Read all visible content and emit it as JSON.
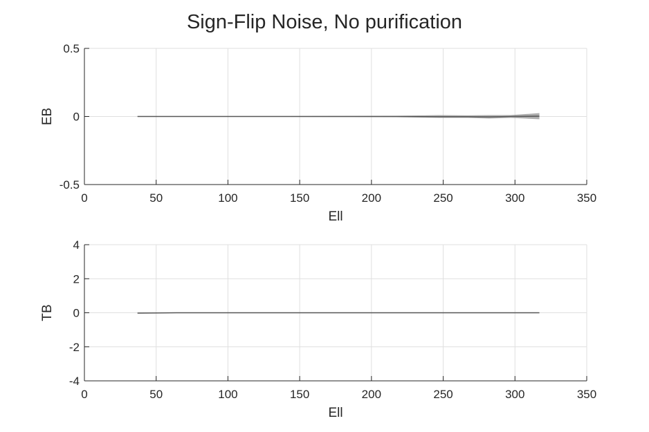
{
  "title": "Sign-Flip Noise, No purification",
  "colors": {
    "series_line": "#555555",
    "band": "#8c8c8c",
    "grid": "#dfdfdf",
    "axis": "#262626"
  },
  "chart_data": [
    {
      "type": "line",
      "xlabel": "Ell",
      "ylabel": "EB",
      "xlim": [
        0,
        350
      ],
      "ylim": [
        -0.5,
        0.5
      ],
      "xticks": [
        "0",
        "50",
        "100",
        "150",
        "200",
        "250",
        "300",
        "350"
      ],
      "yticks": [
        "-0.5",
        "0",
        "0.5"
      ],
      "grid": true,
      "x": [
        37,
        67,
        97,
        127,
        157,
        187,
        217,
        247,
        267,
        282,
        297,
        317
      ],
      "y": [
        0,
        0,
        0,
        0,
        0,
        0,
        0,
        -0.002,
        -0.002,
        -0.003,
        0,
        0.002
      ],
      "band_lower": [
        -0.002,
        -0.002,
        -0.002,
        -0.002,
        -0.003,
        -0.004,
        -0.005,
        -0.01,
        -0.01,
        -0.015,
        -0.01,
        -0.02
      ],
      "band_upper": [
        0.002,
        0.002,
        0.002,
        0.002,
        0.003,
        0.004,
        0.005,
        0.01,
        0.008,
        0.01,
        0.01,
        0.025
      ]
    },
    {
      "type": "line",
      "xlabel": "Ell",
      "ylabel": "TB",
      "xlim": [
        0,
        350
      ],
      "ylim": [
        -4,
        4
      ],
      "xticks": [
        "0",
        "50",
        "100",
        "150",
        "200",
        "250",
        "300",
        "350"
      ],
      "yticks": [
        "-4",
        "-2",
        "0",
        "2",
        "4"
      ],
      "grid": true,
      "x": [
        37,
        67,
        97,
        127,
        157,
        187,
        217,
        247,
        277,
        317
      ],
      "y": [
        -0.02,
        0,
        0,
        0,
        0,
        0,
        0,
        0,
        0,
        0
      ],
      "band_lower": [
        -0.04,
        -0.02,
        -0.02,
        -0.02,
        -0.02,
        -0.02,
        -0.02,
        -0.02,
        -0.02,
        -0.02
      ],
      "band_upper": [
        0.02,
        0.02,
        0.02,
        0.02,
        0.02,
        0.02,
        0.02,
        0.02,
        0.02,
        0.02
      ]
    }
  ]
}
